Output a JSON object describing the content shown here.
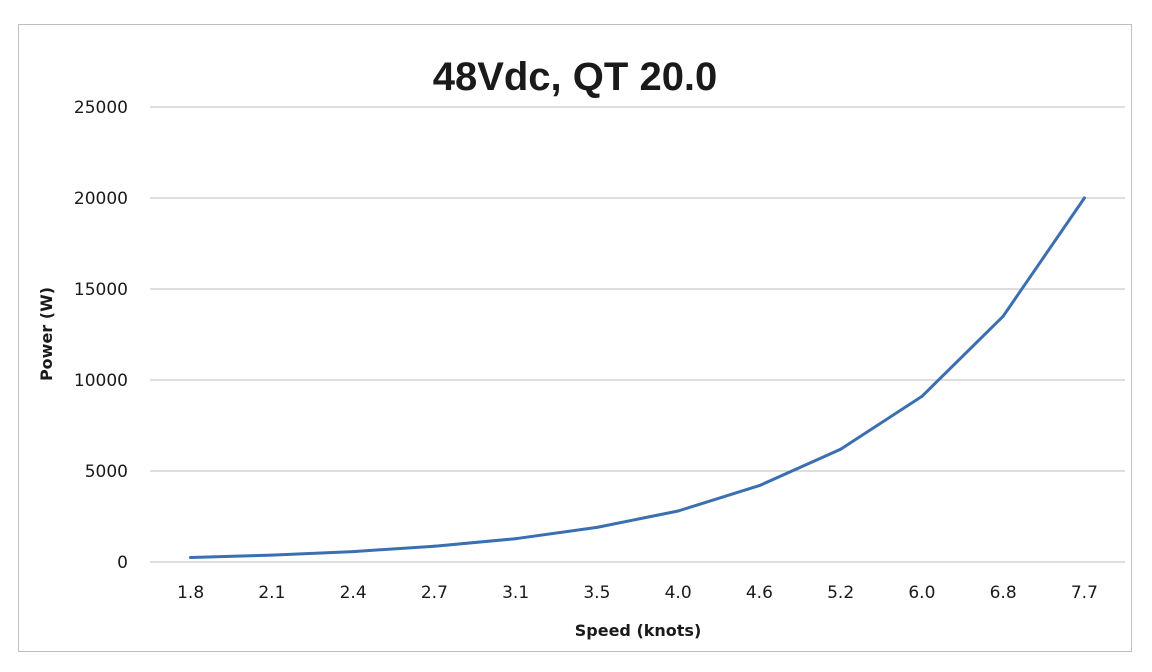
{
  "chart_data": {
    "type": "line",
    "title": "48Vdc, QT 20.0",
    "xlabel": "Speed (knots)",
    "ylabel": "Power (W)",
    "categories": [
      "1.8",
      "2.1",
      "2.4",
      "2.7",
      "3.1",
      "3.5",
      "4.0",
      "4.6",
      "5.2",
      "6.0",
      "6.8",
      "7.7"
    ],
    "series": [
      {
        "values": [
          250,
          380,
          570,
          870,
          1280,
          1900,
          2800,
          4200,
          6200,
          9100,
          13500,
          20000
        ],
        "color": "#3a6fb0"
      }
    ],
    "ylim": [
      0,
      25000
    ],
    "yticks": [
      "0",
      "5000",
      "10000",
      "15000",
      "20000",
      "25000"
    ],
    "grid": true,
    "legend": "none"
  }
}
